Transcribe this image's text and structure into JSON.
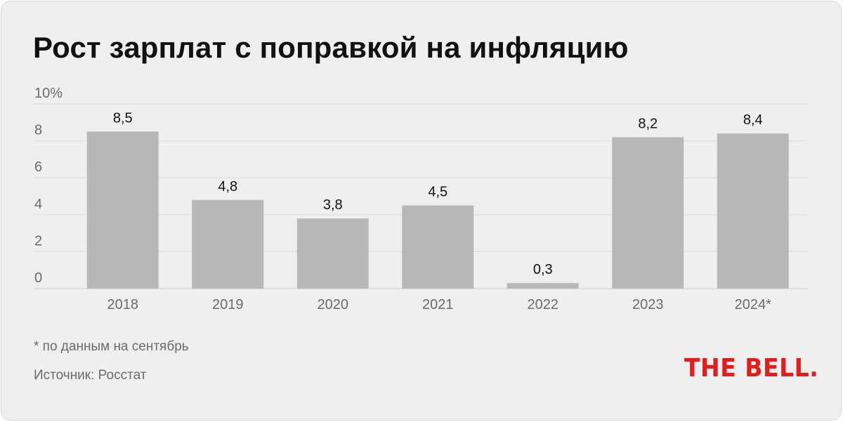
{
  "title": "Рост зарплат с поправкой на инфляцию",
  "footnote": "* по данным на сентябрь",
  "source": "Источник: Росстат",
  "logo": "THE BELL.",
  "colors": {
    "background": "#efefef",
    "bar": "#b8b8b8",
    "grid": "#dddddd",
    "logo": "#e11d1d"
  },
  "chart_data": {
    "type": "bar",
    "categories": [
      "2018",
      "2019",
      "2020",
      "2021",
      "2022",
      "2023",
      "2024*"
    ],
    "values": [
      8.5,
      4.8,
      3.8,
      4.5,
      0.3,
      8.2,
      8.4
    ],
    "value_labels": [
      "8,5",
      "4,8",
      "3,8",
      "4,5",
      "0,3",
      "8,2",
      "8,4"
    ],
    "yticks": [
      0,
      2,
      4,
      6,
      8,
      10
    ],
    "ytick_labels": [
      "0",
      "2",
      "4",
      "6",
      "8",
      "10%"
    ],
    "ylim": [
      0,
      10
    ],
    "grid": true,
    "legend": false
  }
}
